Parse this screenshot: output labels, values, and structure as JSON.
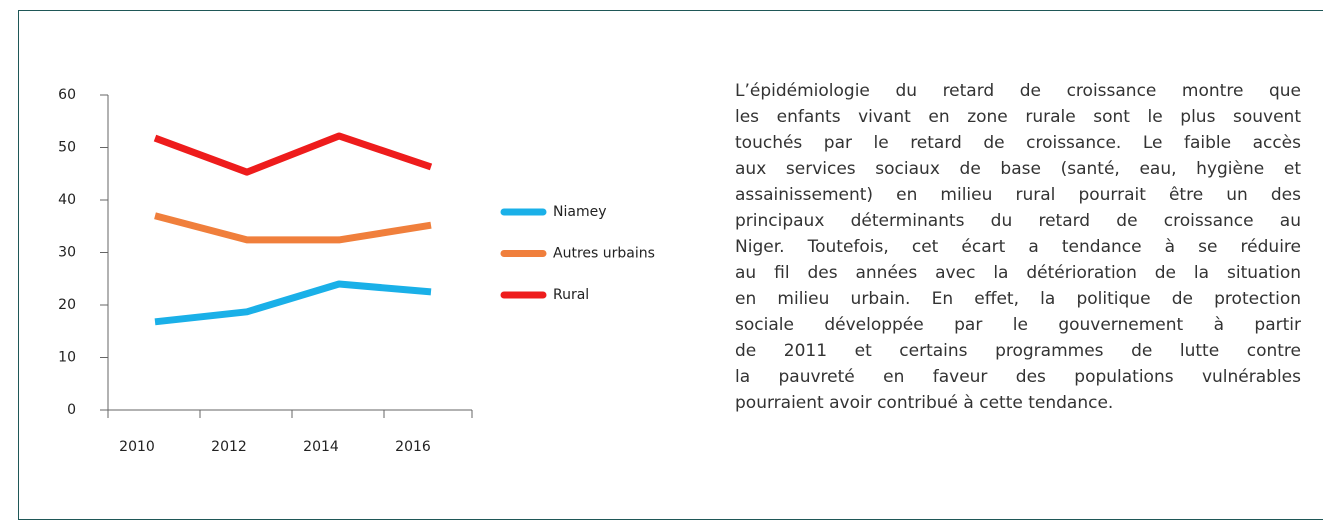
{
  "chart_data": {
    "type": "line",
    "categories": [
      "2010",
      "2012",
      "2014",
      "2016"
    ],
    "series": [
      {
        "name": "Niamey",
        "color": "#1ab0e8",
        "values": [
          16.8,
          18.7,
          24.0,
          22.5
        ]
      },
      {
        "name": "Autres urbains",
        "color": "#f07f3c",
        "values": [
          37.0,
          32.4,
          32.4,
          35.2
        ]
      },
      {
        "name": "Rural",
        "color": "#ee1c1c",
        "values": [
          51.8,
          45.3,
          52.2,
          46.3
        ]
      }
    ],
    "ylim": [
      0,
      60
    ],
    "yticks": [
      0,
      10,
      20,
      30,
      40,
      50,
      60
    ],
    "grid": false,
    "legend": "right"
  },
  "text": {
    "lines": [
      "L’épidémiologie du retard de croissance montre que",
      "les enfants  vivant en zone rurale sont le plus souvent",
      "touchés par le retard de croissance. Le faible accès",
      "aux services sociaux de base (santé, eau, hygiène et",
      "assainissement) en milieu rural pourrait être un des",
      "principaux déterminants du retard de croissance au",
      "Niger. Toutefois, cet écart a tendance à se réduire",
      "au fil des années avec la détérioration de la situation",
      "en milieu urbain. En effet, la politique de protection",
      "sociale développée par le gouvernement à partir",
      "de 2011 et certains programmes de lutte contre",
      "la pauvreté en faveur des populations vulnérables",
      "pourraient avoir contribué à cette tendance."
    ]
  }
}
